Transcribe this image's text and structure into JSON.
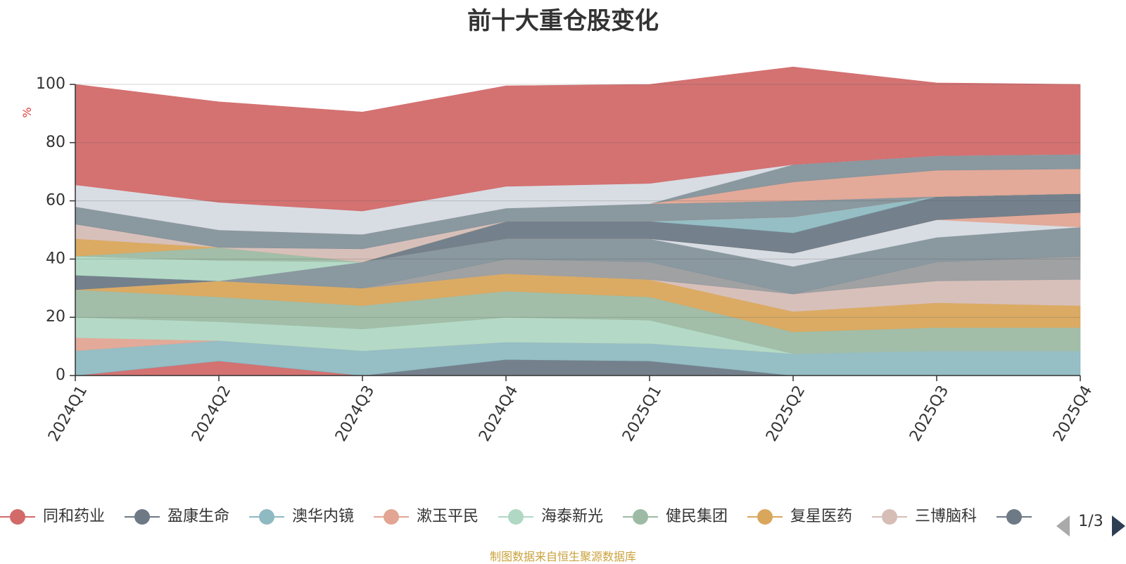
{
  "footer": {
    "source_text": "制图数据来自恒生聚源数据库"
  },
  "legend_pager": {
    "page_text": "1/3"
  },
  "chart_data": {
    "type": "area",
    "title": "前十大重仓股变化",
    "ylabel": "%",
    "xlabel": "",
    "ylim": [
      0,
      100
    ],
    "yticks": [
      0,
      20,
      40,
      60,
      80,
      100
    ],
    "grid": true,
    "stacked": true,
    "legend_position": "bottom",
    "categories": [
      "2024Q1",
      "2024Q2",
      "2024Q3",
      "2024Q4",
      "2025Q1",
      "2025Q2",
      "2025Q3",
      "2025Q4"
    ],
    "series": [
      {
        "name": "同和药业",
        "color": "#d26a6a",
        "values": [
          0,
          5,
          0,
          0,
          0,
          0,
          0,
          0
        ]
      },
      {
        "name": "盈康生命",
        "color": "#6d7a86",
        "values": [
          0,
          0,
          0,
          5.5,
          5,
          0,
          0,
          0
        ]
      },
      {
        "name": "澳华内镜",
        "color": "#8fbac2",
        "values": [
          8.5,
          7,
          8.5,
          6,
          6,
          7.5,
          8.5,
          8.5
        ]
      },
      {
        "name": "漱玉平民",
        "color": "#e2a594",
        "values": [
          4.5,
          0,
          0,
          0,
          0,
          0,
          0,
          0
        ]
      },
      {
        "name": "海泰新光",
        "color": "#b0d8c4",
        "values": [
          7,
          6.5,
          7.5,
          8.5,
          8,
          0,
          0,
          0
        ]
      },
      {
        "name": "健民集团",
        "color": "#9dbba4",
        "values": [
          9.5,
          8.5,
          8,
          9,
          8,
          7.5,
          8,
          8
        ]
      },
      {
        "name": "复星医药",
        "color": "#d9a75c",
        "values": [
          0,
          5.5,
          6,
          6,
          6,
          7,
          8.5,
          7.5
        ]
      },
      {
        "name": "三博脑科",
        "color": "#d6bdb6",
        "values": [
          0,
          0,
          0,
          0,
          0,
          6,
          7.5,
          9
        ]
      },
      {
        "name": "",
        "color": "#9a9c9e",
        "values": [
          0,
          0,
          0,
          5,
          6,
          0,
          6.5,
          8
        ]
      },
      {
        "name": "",
        "color": "#84929a",
        "values": [
          0,
          0,
          9,
          7,
          8,
          9.5,
          8.5,
          10
        ]
      },
      {
        "name": "",
        "color": "#d6dbe2",
        "values": [
          0,
          0,
          0,
          0,
          0,
          4.5,
          6,
          0
        ]
      },
      {
        "name": "",
        "color": "#e2a594",
        "values": [
          0,
          0,
          0,
          0,
          0,
          0,
          0,
          5
        ]
      },
      {
        "name": "",
        "color": "#6d7a86",
        "values": [
          5,
          0,
          0,
          6,
          6,
          7,
          8,
          6.5
        ]
      },
      {
        "name": "",
        "color": "#8fbac2",
        "values": [
          0,
          0,
          0,
          0,
          0,
          5.5,
          0,
          0
        ]
      },
      {
        "name": "",
        "color": "#b0d8c4",
        "values": [
          6.5,
          7,
          0,
          0,
          0,
          0,
          0,
          0
        ]
      },
      {
        "name": "",
        "color": "#9dbba4",
        "values": [
          0,
          4.5,
          0,
          0,
          0,
          0,
          0,
          0
        ]
      },
      {
        "name": "",
        "color": "#d9a75c",
        "values": [
          6,
          0,
          0,
          0,
          0,
          0,
          0,
          0
        ]
      },
      {
        "name": "",
        "color": "#d6bdb6",
        "values": [
          5,
          0,
          4.5,
          0,
          0,
          0,
          0,
          0
        ]
      },
      {
        "name": "",
        "color": "#84929a",
        "values": [
          6,
          6,
          5,
          4.5,
          6,
          5.5,
          0,
          0
        ]
      },
      {
        "name": "",
        "color": "#e2a594",
        "values": [
          0,
          0,
          0,
          0,
          0,
          6.5,
          9,
          8.5
        ]
      },
      {
        "name": "",
        "color": "#84929a",
        "values": [
          0,
          0,
          0,
          0,
          0,
          6,
          5,
          5
        ]
      },
      {
        "name": "",
        "color": "#d6dbe2",
        "values": [
          7.5,
          9.5,
          8,
          7.5,
          7,
          0,
          0,
          0
        ]
      },
      {
        "name": "",
        "color": "#d26a6a",
        "values": [
          34.5,
          34.5,
          34,
          34.5,
          34,
          33.5,
          25,
          24
        ]
      }
    ]
  }
}
